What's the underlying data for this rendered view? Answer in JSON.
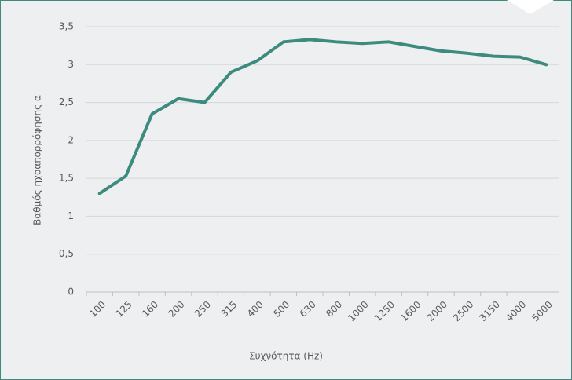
{
  "chart_data": {
    "type": "line",
    "x_label": "Συχνότητα (Hz)",
    "y_label": "Βαθμός ηχοαπορρόφησης α",
    "categories": [
      "100",
      "125",
      "160",
      "200",
      "250",
      "315",
      "400",
      "500",
      "630",
      "800",
      "1000",
      "1250",
      "1600",
      "2000",
      "2500",
      "3150",
      "4000",
      "5000"
    ],
    "series": [
      {
        "color": "#3d8b7f",
        "values": [
          1.3,
          1.53,
          2.35,
          2.55,
          2.5,
          2.9,
          3.05,
          3.3,
          3.33,
          3.3,
          3.28,
          3.3,
          3.24,
          3.18,
          3.15,
          3.11,
          3.1,
          3.0
        ]
      }
    ],
    "ylim": [
      0,
      3.5
    ],
    "yticks": [
      0,
      {
        "value": 0.5,
        "label": "0,5"
      },
      1,
      {
        "value": 1.5,
        "label": "1,5"
      },
      2,
      {
        "value": 2.5,
        "label": "2,5"
      },
      3,
      {
        "value": 3.5,
        "label": "3,5"
      }
    ],
    "grid": true
  }
}
